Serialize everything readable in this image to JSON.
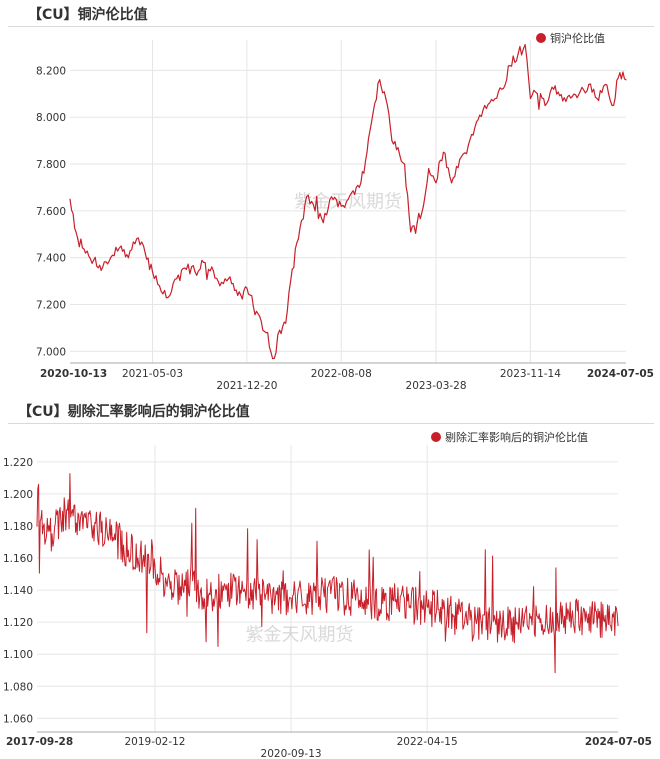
{
  "chart_data": [
    {
      "type": "line",
      "title": "【CU】铜沪伦比值",
      "legend": "铜沪伦比值",
      "legend_position": "top-right",
      "watermark": "紫金天风期货",
      "color": "#c8202a",
      "grid": true,
      "ylim": [
        6.95,
        8.33
      ],
      "yticks": [
        "7.000",
        "7.200",
        "7.400",
        "7.600",
        "7.800",
        "8.000",
        "8.200"
      ],
      "xlabels": [
        {
          "text": "2020-10-13",
          "row": 0,
          "bold": true
        },
        {
          "text": "2021-05-03",
          "row": 0,
          "bold": false
        },
        {
          "text": "2021-12-20",
          "row": 1,
          "bold": false
        },
        {
          "text": "2022-08-08",
          "row": 0,
          "bold": false
        },
        {
          "text": "2023-03-28",
          "row": 1,
          "bold": false
        },
        {
          "text": "2023-11-14",
          "row": 0,
          "bold": false
        },
        {
          "text": "2024-07-05",
          "row": 0,
          "bold": true
        }
      ],
      "series": [
        {
          "name": "铜沪伦比值",
          "x": [
            "2020-10-13",
            "2020-11-01",
            "2020-11-20",
            "2020-12-10",
            "2021-01-01",
            "2021-01-25",
            "2021-02-15",
            "2021-03-05",
            "2021-03-25",
            "2021-04-15",
            "2021-05-03",
            "2021-05-20",
            "2021-06-10",
            "2021-07-01",
            "2021-07-25",
            "2021-08-15",
            "2021-09-05",
            "2021-09-25",
            "2021-10-15",
            "2021-11-05",
            "2021-11-20",
            "2021-12-05",
            "2021-12-20",
            "2021-12-28",
            "2022-01-05",
            "2022-01-20",
            "2022-02-05",
            "2022-02-25",
            "2022-03-10",
            "2022-03-25",
            "2022-04-10",
            "2022-04-25",
            "2022-05-15",
            "2022-06-05",
            "2022-06-25",
            "2022-07-15",
            "2022-08-08",
            "2022-08-25",
            "2022-09-10",
            "2022-09-25",
            "2022-10-10",
            "2022-10-25",
            "2022-11-10",
            "2022-11-25",
            "2022-12-10",
            "2022-12-25",
            "2023-01-10",
            "2023-01-25",
            "2023-02-10",
            "2023-02-25",
            "2023-03-10",
            "2023-03-28",
            "2023-04-15",
            "2023-05-05",
            "2023-05-25",
            "2023-06-15",
            "2023-07-05",
            "2023-07-25",
            "2023-08-15",
            "2023-09-05",
            "2023-09-25",
            "2023-10-15",
            "2023-11-01",
            "2023-11-14",
            "2023-12-01",
            "2023-12-20",
            "2024-01-10",
            "2024-02-01",
            "2024-02-25",
            "2024-03-15",
            "2024-04-05",
            "2024-04-25",
            "2024-05-15",
            "2024-06-01",
            "2024-06-20",
            "2024-07-05"
          ],
          "values": [
            7.65,
            7.48,
            7.42,
            7.39,
            7.36,
            7.41,
            7.45,
            7.4,
            7.48,
            7.42,
            7.34,
            7.28,
            7.23,
            7.31,
            7.35,
            7.34,
            7.38,
            7.36,
            7.28,
            7.31,
            7.26,
            7.24,
            7.27,
            7.24,
            7.19,
            7.15,
            7.08,
            6.97,
            7.09,
            7.12,
            7.35,
            7.48,
            7.66,
            7.6,
            7.55,
            7.66,
            7.62,
            7.65,
            7.67,
            7.72,
            7.85,
            8.02,
            8.16,
            8.08,
            7.9,
            7.87,
            7.8,
            7.51,
            7.55,
            7.62,
            7.78,
            7.72,
            7.85,
            7.72,
            7.82,
            7.88,
            7.98,
            8.05,
            8.07,
            8.12,
            8.22,
            8.27,
            8.31,
            8.08,
            8.1,
            8.05,
            8.12,
            8.07,
            8.09,
            8.11,
            8.14,
            8.08,
            8.14,
            8.05,
            8.19,
            8.16
          ]
        }
      ]
    },
    {
      "type": "line",
      "title": "【CU】剔除汇率影响后的铜沪伦比值",
      "legend": "剔除汇率影响后的铜沪伦比值",
      "legend_position": "top-right",
      "watermark": "紫金天风期货",
      "color": "#c8202a",
      "grid": true,
      "ylim": [
        1.0515,
        1.2305
      ],
      "yticks": [
        "1.060",
        "1.080",
        "1.100",
        "1.120",
        "1.140",
        "1.160",
        "1.180",
        "1.200",
        "1.220"
      ],
      "xlabels": [
        {
          "text": "2017-09-28",
          "row": 0,
          "bold": true
        },
        {
          "text": "2019-02-12",
          "row": 0,
          "bold": false
        },
        {
          "text": "2020-09-13",
          "row": 1,
          "bold": false
        },
        {
          "text": "2022-04-15",
          "row": 0,
          "bold": false
        },
        {
          "text": "2024-07-05",
          "row": 0,
          "bold": true
        }
      ],
      "series": [
        {
          "name": "剔除汇率影响后的铜沪伦比值",
          "x": [
            "2017-09-28",
            "2017-12-01",
            "2018-02-01",
            "2018-04-01",
            "2018-06-01",
            "2018-08-01",
            "2018-10-01",
            "2018-12-01",
            "2019-02-12",
            "2019-04-01",
            "2019-06-01",
            "2019-08-01",
            "2019-10-01",
            "2019-12-01",
            "2020-02-01",
            "2020-04-01",
            "2020-06-01",
            "2020-09-13",
            "2020-12-01",
            "2021-03-01",
            "2021-06-01",
            "2021-09-01",
            "2021-12-01",
            "2022-02-01",
            "2022-04-15",
            "2022-06-01",
            "2022-08-01",
            "2022-10-01",
            "2022-12-01",
            "2023-03-01",
            "2023-06-01",
            "2023-09-01",
            "2023-12-01",
            "2024-03-01",
            "2024-07-05"
          ],
          "values": [
            1.18,
            1.175,
            1.19,
            1.185,
            1.182,
            1.175,
            1.168,
            1.16,
            1.155,
            1.145,
            1.142,
            1.14,
            1.138,
            1.14,
            1.142,
            1.14,
            1.138,
            1.135,
            1.133,
            1.138,
            1.135,
            1.132,
            1.133,
            1.13,
            1.13,
            1.128,
            1.125,
            1.12,
            1.12,
            1.118,
            1.12,
            1.12,
            1.122,
            1.125,
            1.118
          ]
        }
      ]
    }
  ]
}
